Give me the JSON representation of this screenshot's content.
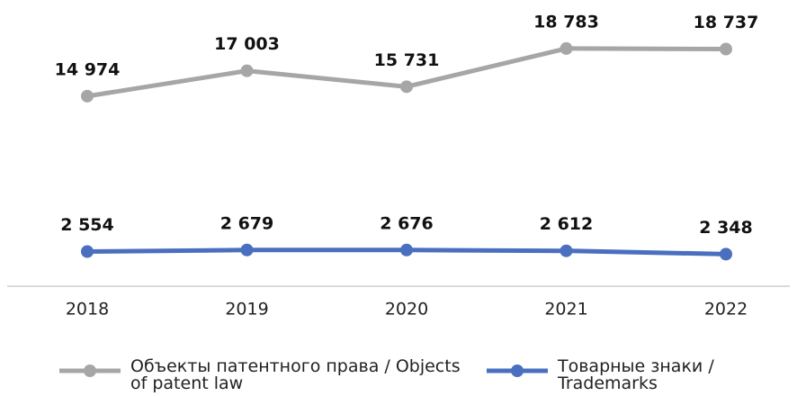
{
  "chart_data": {
    "type": "line",
    "x": [
      "2018",
      "2019",
      "2020",
      "2021",
      "2022"
    ],
    "ylim": [
      0,
      20000
    ],
    "series": [
      {
        "name": "Объекты патентного права / Objects of patent law",
        "color": "#a6a6a6",
        "values": [
          14974,
          17003,
          15731,
          18783,
          18737
        ],
        "value_labels": [
          "14 974",
          "17 003",
          "15 731",
          "18 783",
          "18 737"
        ]
      },
      {
        "name": "Товарные знаки / Trademarks",
        "color": "#4a6fbf",
        "values": [
          2554,
          2679,
          2676,
          2612,
          2348
        ],
        "value_labels": [
          "2 554",
          "2 679",
          "2 676",
          "2 612",
          "2 348"
        ]
      }
    ]
  }
}
